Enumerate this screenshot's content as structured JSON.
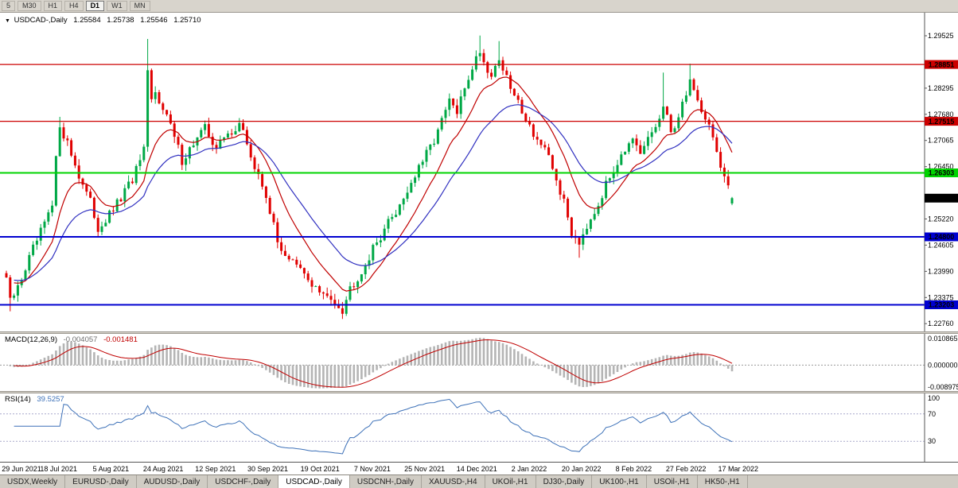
{
  "toolbar": {
    "timeframes": [
      {
        "label": "5",
        "active": false
      },
      {
        "label": "M30",
        "active": false
      },
      {
        "label": "H1",
        "active": false
      },
      {
        "label": "H4",
        "active": false
      },
      {
        "label": "D1",
        "active": true
      },
      {
        "label": "W1",
        "active": false
      },
      {
        "label": "MN",
        "active": false
      }
    ]
  },
  "chart": {
    "expander": "▼",
    "symbol": "USDCAD-,Daily",
    "ohlc": {
      "open": "1.25584",
      "high": "1.25738",
      "low": "1.25546",
      "close": "1.25710"
    },
    "price_axis_labels": [
      "1.29525",
      "1.28295",
      "1.27680",
      "1.27065",
      "1.26450",
      "1.25220",
      "1.24605",
      "1.23990",
      "1.23375",
      "1.22760"
    ],
    "hlines": [
      {
        "price": 1.28851,
        "label": "1.28851",
        "color": "#CC0000",
        "width": 1.2
      },
      {
        "price": 1.27515,
        "label": "1.27515",
        "color": "#CC0000",
        "width": 1.2
      },
      {
        "price": 1.26303,
        "label": "1.26303",
        "color": "#00D400",
        "width": 2
      },
      {
        "price": 1.248,
        "label": "1.24800",
        "color": "#0000D0",
        "width": 2
      },
      {
        "price": 1.23203,
        "label": "1.23203",
        "color": "#0000D0",
        "width": 2
      }
    ],
    "current_price": {
      "label": "1.25710",
      "color": "#000000"
    },
    "date_labels": [
      "29 Jun 2021",
      "18 Jul 2021",
      "5 Aug 2021",
      "24 Aug 2021",
      "12 Sep 2021",
      "30 Sep 2021",
      "19 Oct 2021",
      "7 Nov 2021",
      "25 Nov 2021",
      "14 Dec 2021",
      "2 Jan 2022",
      "20 Jan 2022",
      "8 Feb 2022",
      "27 Feb 2022",
      "17 Mar 2022"
    ]
  },
  "macd": {
    "title": "MACD(12,26,9)",
    "value_main": "-0.004057",
    "value_signal": "-0.001481",
    "axis_labels": [
      "0.010865",
      "0.000000",
      "-0.008975"
    ],
    "range": {
      "max": 0.010865,
      "min": -0.008975
    },
    "params": {
      "fast": 12,
      "slow": 26,
      "signal": 9
    }
  },
  "rsi": {
    "title": "RSI(14)",
    "value": "39.5257",
    "axis_labels": [
      "100",
      "70",
      "30"
    ],
    "levels": [
      70,
      30
    ],
    "period": 14
  },
  "tabs": [
    {
      "label": "USDX,Weekly",
      "active": false
    },
    {
      "label": "EURUSD-,Daily",
      "active": false
    },
    {
      "label": "AUDUSD-,Daily",
      "active": false
    },
    {
      "label": "USDCHF-,Daily",
      "active": false
    },
    {
      "label": "USDCAD-,Daily",
      "active": true
    },
    {
      "label": "USDCNH-,Daily",
      "active": false
    },
    {
      "label": "XAUUSD-,H4",
      "active": false
    },
    {
      "label": "UKOil-,H1",
      "active": false
    },
    {
      "label": "DJ30-,Daily",
      "active": false
    },
    {
      "label": "UK100-,H1",
      "active": false
    },
    {
      "label": "USOil-,H1",
      "active": false
    },
    {
      "label": "HK50-,H1",
      "active": false
    }
  ],
  "chart_data": {
    "type": "candlestick",
    "symbol": "USDCAD",
    "timeframe": "Daily",
    "x_range": [
      "29 Jun 2021",
      "17 Mar 2022"
    ],
    "y_range": [
      1.2276,
      1.29525
    ],
    "current_ohlc": {
      "o": 1.25584,
      "h": 1.25738,
      "l": 1.25546,
      "c": 1.2571
    },
    "num_candles": 191,
    "scale": {
      "p0": 1.29525,
      "y0": 29,
      "k": 5354.6
    },
    "colors": {
      "bull": "#00A846",
      "bear": "#E00000"
    },
    "price_path": [
      [
        0,
        1.2385
      ],
      [
        1,
        1.2325
      ],
      [
        3,
        1.236
      ],
      [
        6,
        1.243
      ],
      [
        9,
        1.249
      ],
      [
        12,
        1.255
      ],
      [
        13,
        1.266
      ],
      [
        14,
        1.2745
      ],
      [
        16,
        1.27
      ],
      [
        19,
        1.2625
      ],
      [
        22,
        1.256
      ],
      [
        24,
        1.25
      ],
      [
        27,
        1.253
      ],
      [
        30,
        1.257
      ],
      [
        33,
        1.2615
      ],
      [
        36,
        1.268
      ],
      [
        37,
        1.286
      ],
      [
        38,
        1.28
      ],
      [
        39,
        1.2815
      ],
      [
        41,
        1.279
      ],
      [
        43,
        1.274
      ],
      [
        46,
        1.266
      ],
      [
        49,
        1.27
      ],
      [
        52,
        1.2735
      ],
      [
        55,
        1.269
      ],
      [
        58,
        1.272
      ],
      [
        61,
        1.2745
      ],
      [
        63,
        1.27
      ],
      [
        65,
        1.264
      ],
      [
        68,
        1.258
      ],
      [
        71,
        1.2465
      ],
      [
        74,
        1.243
      ],
      [
        77,
        1.24
      ],
      [
        80,
        1.237
      ],
      [
        83,
        1.234
      ],
      [
        86,
        1.233
      ],
      [
        88,
        1.231
      ],
      [
        90,
        1.236
      ],
      [
        93,
        1.24
      ],
      [
        96,
        1.245
      ],
      [
        99,
        1.25
      ],
      [
        102,
        1.254
      ],
      [
        105,
        1.259
      ],
      [
        108,
        1.264
      ],
      [
        111,
        1.269
      ],
      [
        114,
        1.275
      ],
      [
        116,
        1.28
      ],
      [
        118,
        1.277
      ],
      [
        120,
        1.283
      ],
      [
        122,
        1.288
      ],
      [
        124,
        1.292
      ],
      [
        125,
        1.289
      ],
      [
        127,
        1.286
      ],
      [
        129,
        1.29
      ],
      [
        131,
        1.285
      ],
      [
        133,
        1.281
      ],
      [
        135,
        1.278
      ],
      [
        137,
        1.274
      ],
      [
        139,
        1.271
      ],
      [
        141,
        1.268
      ],
      [
        143,
        1.264
      ],
      [
        146,
        1.256
      ],
      [
        148,
        1.249
      ],
      [
        150,
        1.247
      ],
      [
        152,
        1.251
      ],
      [
        155,
        1.256
      ],
      [
        158,
        1.262
      ],
      [
        161,
        1.268
      ],
      [
        164,
        1.27
      ],
      [
        166,
        1.267
      ],
      [
        168,
        1.271
      ],
      [
        170,
        1.274
      ],
      [
        172,
        1.278
      ],
      [
        174,
        1.273
      ],
      [
        176,
        1.276
      ],
      [
        179,
        1.285
      ],
      [
        181,
        1.28
      ],
      [
        183,
        1.276
      ],
      [
        185,
        1.272
      ],
      [
        187,
        1.264
      ],
      [
        189,
        1.259
      ],
      [
        190,
        1.2571
      ]
    ],
    "wick_events": [
      {
        "day": 1,
        "low": 1.2305
      },
      {
        "day": 14,
        "high": 1.2762
      },
      {
        "day": 37,
        "high": 1.2945
      },
      {
        "day": 88,
        "low": 1.2287
      },
      {
        "day": 124,
        "high": 1.2953
      },
      {
        "day": 129,
        "high": 1.294
      },
      {
        "day": 150,
        "low": 1.2431
      },
      {
        "day": 172,
        "high": 1.2866
      },
      {
        "day": 179,
        "high": 1.2887
      }
    ],
    "overlays": [
      {
        "name": "ma-fast",
        "period": 12,
        "color": "#C00000"
      },
      {
        "name": "ma-slow",
        "period": 26,
        "color": "#3030C0"
      }
    ],
    "indicators": [
      {
        "name": "MACD",
        "params": [
          12,
          26,
          9
        ],
        "current": {
          "main": -0.004057,
          "signal": -0.001481
        }
      },
      {
        "name": "RSI",
        "params": [
          14
        ],
        "current": 39.5257
      }
    ]
  }
}
